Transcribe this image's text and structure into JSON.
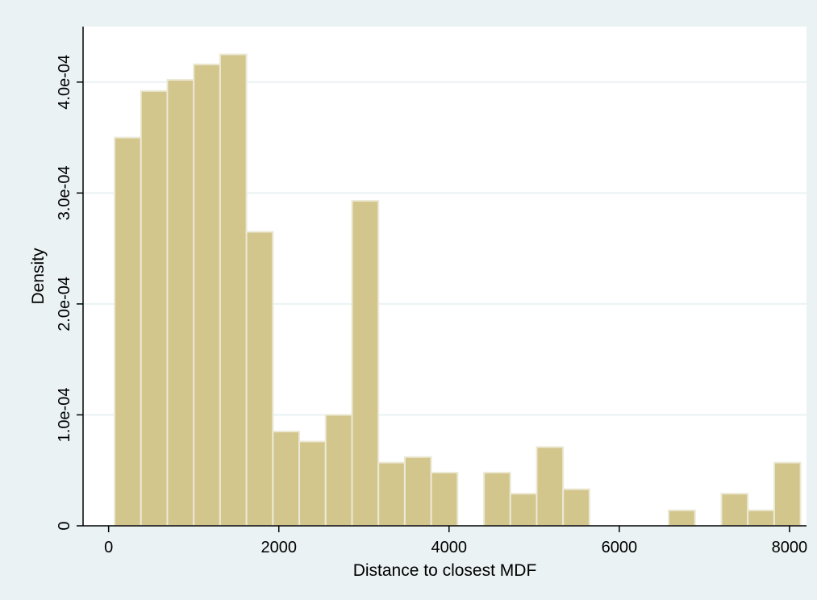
{
  "chart_data": {
    "type": "bar",
    "title": "",
    "xlabel": "Distance to closest MDF",
    "ylabel": "Density",
    "xlim": [
      -300,
      8200
    ],
    "ylim": [
      0,
      0.00045
    ],
    "grid": true,
    "colors": {
      "background": "#eaf2f3",
      "plot_area": "#ffffff",
      "bar_fill": "#d3c68d",
      "bar_stroke": "#ece9d6",
      "gridline": "#eaf2f3",
      "axis": "#000000"
    },
    "x_ticks": [
      {
        "value": 0,
        "label": "0"
      },
      {
        "value": 2000,
        "label": "2000"
      },
      {
        "value": 4000,
        "label": "4000"
      },
      {
        "value": 6000,
        "label": "6000"
      },
      {
        "value": 8000,
        "label": "8000"
      }
    ],
    "y_ticks": [
      {
        "value": 0,
        "label": "0"
      },
      {
        "value": 0.0001,
        "label": "1.0e-04"
      },
      {
        "value": 0.0002,
        "label": "2.0e-04"
      },
      {
        "value": 0.0003,
        "label": "3.0e-04"
      },
      {
        "value": 0.0004,
        "label": "4.0e-04"
      }
    ],
    "bins": [
      {
        "x0": 70,
        "x1": 380,
        "value": 0.00035
      },
      {
        "x0": 380,
        "x1": 690,
        "value": 0.000392
      },
      {
        "x0": 690,
        "x1": 1000,
        "value": 0.000402
      },
      {
        "x0": 1000,
        "x1": 1310,
        "value": 0.000416
      },
      {
        "x0": 1310,
        "x1": 1620,
        "value": 0.000425
      },
      {
        "x0": 1620,
        "x1": 1930,
        "value": 0.000265
      },
      {
        "x0": 1930,
        "x1": 2240,
        "value": 8.5e-05
      },
      {
        "x0": 2240,
        "x1": 2550,
        "value": 7.6e-05
      },
      {
        "x0": 2550,
        "x1": 2860,
        "value": 0.0001
      },
      {
        "x0": 2860,
        "x1": 3170,
        "value": 0.000293
      },
      {
        "x0": 3170,
        "x1": 3480,
        "value": 5.7e-05
      },
      {
        "x0": 3480,
        "x1": 3790,
        "value": 6.2e-05
      },
      {
        "x0": 3790,
        "x1": 4100,
        "value": 4.8e-05
      },
      {
        "x0": 4100,
        "x1": 4410,
        "value": 0
      },
      {
        "x0": 4410,
        "x1": 4720,
        "value": 4.8e-05
      },
      {
        "x0": 4720,
        "x1": 5030,
        "value": 2.9e-05
      },
      {
        "x0": 5030,
        "x1": 5340,
        "value": 7.1e-05
      },
      {
        "x0": 5340,
        "x1": 5650,
        "value": 3.3e-05
      },
      {
        "x0": 5650,
        "x1": 5960,
        "value": 0
      },
      {
        "x0": 5960,
        "x1": 6270,
        "value": 0
      },
      {
        "x0": 6270,
        "x1": 6580,
        "value": 0
      },
      {
        "x0": 6580,
        "x1": 6890,
        "value": 1.4e-05
      },
      {
        "x0": 6890,
        "x1": 7200,
        "value": 0
      },
      {
        "x0": 7200,
        "x1": 7510,
        "value": 2.9e-05
      },
      {
        "x0": 7510,
        "x1": 7820,
        "value": 1.4e-05
      },
      {
        "x0": 7820,
        "x1": 8130,
        "value": 5.7e-05
      }
    ]
  }
}
